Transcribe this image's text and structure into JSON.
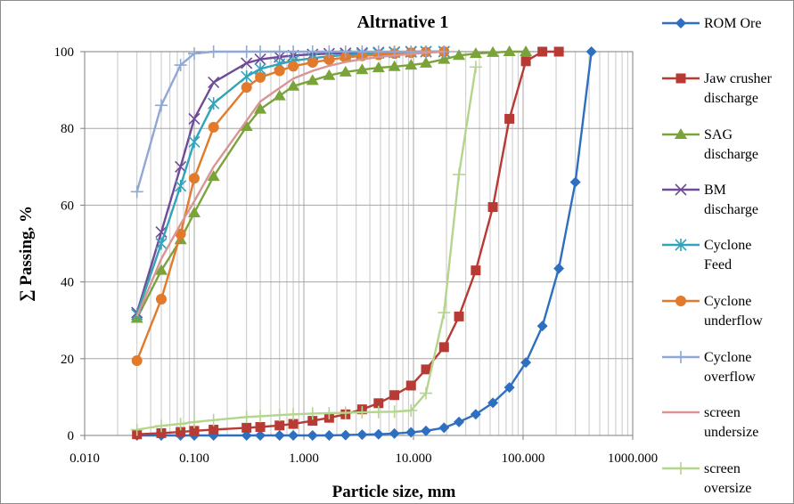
{
  "chart_data": {
    "type": "line",
    "title": "Altrnative 1",
    "xlabel": "Particle size, mm",
    "ylabel": "∑ Passing, %",
    "xscale": "log",
    "xlim": [
      0.01,
      1000
    ],
    "ylim": [
      0,
      100
    ],
    "x_ticks": [
      0.01,
      0.1,
      1,
      10,
      100,
      1000
    ],
    "x_tick_labels": [
      "0.010",
      "0.100",
      "1.000",
      "10.000",
      "100.000",
      "1000.000"
    ],
    "y_ticks": [
      0,
      20,
      40,
      60,
      80,
      100
    ],
    "y_tick_labels": [
      "0",
      "20",
      "40",
      "60",
      "80",
      "100"
    ],
    "grid": true,
    "legend_position": "right",
    "series": [
      {
        "name": "ROM Ore",
        "color": "#2e6fc0",
        "marker": "diamond",
        "x": [
          0.03,
          0.05,
          0.075,
          0.1,
          0.15,
          0.3,
          0.4,
          0.6,
          0.8,
          1.2,
          1.7,
          2.4,
          3.4,
          4.8,
          6.7,
          9.5,
          13,
          19,
          26,
          37,
          53,
          75,
          106,
          150,
          212,
          300,
          420
        ],
        "y": [
          0,
          0,
          0,
          0,
          0,
          0,
          0,
          0,
          0,
          0,
          0,
          0.1,
          0.2,
          0.3,
          0.5,
          0.8,
          1.2,
          2,
          3.5,
          5.5,
          8.5,
          12.5,
          19,
          28.5,
          43.5,
          66,
          100
        ]
      },
      {
        "name": "Jaw crusher discharge",
        "color": "#b83a34",
        "marker": "square",
        "x": [
          0.03,
          0.05,
          0.075,
          0.1,
          0.15,
          0.3,
          0.4,
          0.6,
          0.8,
          1.2,
          1.7,
          2.4,
          3.4,
          4.8,
          6.7,
          9.5,
          13,
          19,
          26,
          37,
          53,
          75,
          106,
          150,
          212
        ],
        "y": [
          0.3,
          0.6,
          0.9,
          1.2,
          1.5,
          2,
          2.2,
          2.6,
          3,
          3.8,
          4.6,
          5.5,
          6.8,
          8.4,
          10.5,
          13,
          17.2,
          23,
          31,
          43,
          59.5,
          82.5,
          97.5,
          100,
          100
        ]
      },
      {
        "name": "SAG discharge",
        "color": "#7aa33a",
        "marker": "triangle",
        "x": [
          0.03,
          0.05,
          0.075,
          0.1,
          0.15,
          0.3,
          0.4,
          0.6,
          0.8,
          1.2,
          1.7,
          2.4,
          3.4,
          4.8,
          6.7,
          9.5,
          13,
          19,
          26,
          37,
          53,
          75,
          106
        ],
        "y": [
          30.5,
          43,
          51,
          58,
          67.5,
          80.5,
          85,
          88.5,
          91,
          92.5,
          93.8,
          94.7,
          95.3,
          95.8,
          96.1,
          96.5,
          97,
          98,
          99,
          99.5,
          99.8,
          100,
          100
        ]
      },
      {
        "name": "BM discharge",
        "color": "#6f4b97",
        "marker": "x",
        "x": [
          0.03,
          0.05,
          0.075,
          0.1,
          0.15,
          0.3,
          0.4,
          0.6,
          0.8,
          1.2,
          1.7,
          2.4,
          3.4,
          4.8,
          6.7,
          9.5,
          13,
          19
        ],
        "y": [
          32,
          53,
          70,
          82.5,
          92,
          97,
          98,
          98.6,
          99,
          99.3,
          99.5,
          99.6,
          99.7,
          99.8,
          99.9,
          100,
          100,
          100
        ]
      },
      {
        "name": "Cyclone Feed",
        "color": "#32a3b8",
        "marker": "asterisk",
        "x": [
          0.03,
          0.05,
          0.075,
          0.1,
          0.15,
          0.3,
          0.4,
          0.6,
          0.8,
          1.2,
          1.7,
          2.4,
          3.4,
          4.8,
          6.7,
          9.5,
          13,
          19
        ],
        "y": [
          31.5,
          50,
          65,
          76.5,
          86.5,
          93.5,
          95.5,
          96.8,
          97.6,
          98.3,
          98.8,
          99.1,
          99.4,
          99.6,
          99.8,
          99.9,
          100,
          100
        ]
      },
      {
        "name": "Cyclone underflow",
        "color": "#e27a2c",
        "marker": "circle",
        "x": [
          0.03,
          0.05,
          0.075,
          0.1,
          0.15,
          0.3,
          0.4,
          0.6,
          0.8,
          1.2,
          1.7,
          2.4,
          3.4,
          4.8,
          6.7,
          9.5,
          13,
          19
        ],
        "y": [
          19.5,
          35.5,
          52.5,
          67,
          80.3,
          90.7,
          93.3,
          95,
          96.2,
          97.2,
          97.9,
          98.5,
          98.9,
          99.2,
          99.5,
          99.7,
          99.9,
          100
        ]
      },
      {
        "name": "Cyclone overflow",
        "color": "#8fa8d6",
        "marker": "plus",
        "x": [
          0.03,
          0.05,
          0.075,
          0.1,
          0.15,
          0.3,
          0.4,
          0.6,
          0.8,
          1.2,
          1.7,
          2.4,
          3.4,
          4.8,
          6.7,
          9.5,
          13,
          19
        ],
        "y": [
          63.5,
          86,
          96.5,
          99.5,
          100,
          100,
          100,
          100,
          100,
          100,
          100,
          100,
          100,
          100,
          100,
          100,
          100,
          100
        ]
      },
      {
        "name": "screen undersize",
        "color": "#d99594",
        "marker": "none",
        "x": [
          0.03,
          0.05,
          0.075,
          0.1,
          0.15,
          0.3,
          0.4,
          0.6,
          0.8,
          1.2,
          1.7,
          2.4,
          3.4,
          4.8,
          6.7,
          9.5,
          13,
          19
        ],
        "y": [
          31,
          46,
          55,
          61,
          70,
          82,
          87,
          90.5,
          93,
          95,
          96.3,
          97.3,
          98,
          98.6,
          99,
          99.4,
          99.7,
          100
        ]
      },
      {
        "name": "screen oversize",
        "color": "#b4d58c",
        "marker": "plus",
        "x": [
          0.03,
          0.05,
          0.075,
          0.1,
          0.15,
          0.3,
          0.4,
          0.6,
          0.8,
          1.2,
          1.7,
          2.4,
          3.4,
          4.8,
          6.7,
          9.5,
          13,
          19,
          26,
          37
        ],
        "y": [
          1.5,
          2.5,
          3,
          3.5,
          4,
          4.8,
          5,
          5.3,
          5.5,
          5.7,
          5.8,
          5.9,
          6,
          6.1,
          6.2,
          6.5,
          11,
          32,
          68,
          96
        ]
      }
    ]
  }
}
